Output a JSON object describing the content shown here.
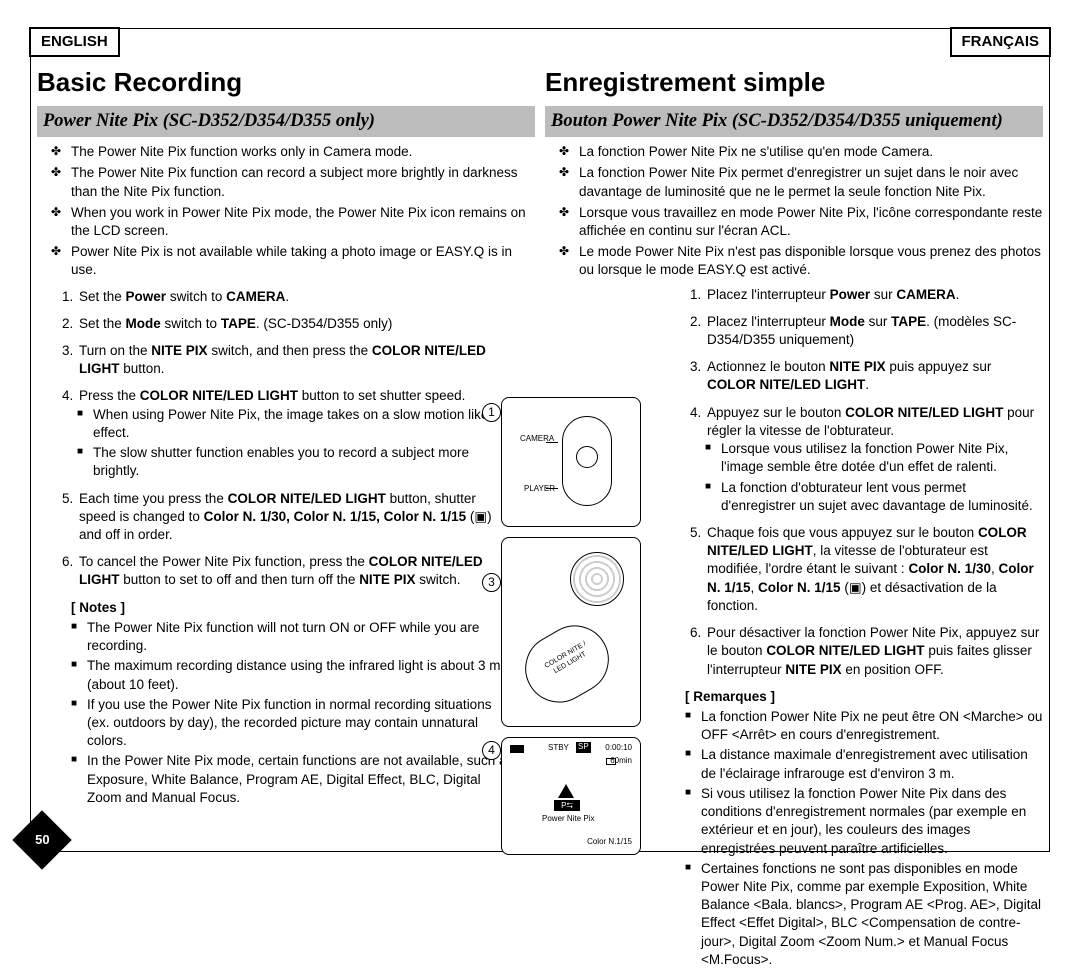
{
  "lang": {
    "en": "ENGLISH",
    "fr": "FRANÇAIS"
  },
  "page_num": "50",
  "en": {
    "title": "Basic Recording",
    "subtitle": "Power Nite Pix (SC-D352/D354/D355 only)",
    "bullets": [
      "The Power Nite Pix function works only in Camera mode.",
      "The Power Nite Pix function can record a subject more brightly in darkness than the Nite Pix function.",
      "When you work in Power Nite Pix mode, the Power Nite Pix icon remains on the LCD screen.",
      "Power Nite Pix is not available while taking a photo image or EASY.Q is in use."
    ],
    "steps": [
      "Set the <b>Power</b> switch to <b>CAMERA</b>.",
      "Set the <b>Mode</b> switch to <b>TAPE</b>. (SC-D354/D355 only)",
      "Turn on the <b>NITE PIX</b> switch, and then press the <b>COLOR NITE/LED LIGHT</b> button.",
      "Press the <b>COLOR NITE/LED LIGHT</b> button to set shutter speed.",
      "Each time you press the <b>COLOR NITE/LED LIGHT</b> button, shutter speed is changed to <b>Color N. 1/30, Color N. 1/15, Color N. 1/15</b> (▣) and off in order.",
      "To cancel the Power Nite Pix function, press the <b>COLOR NITE/LED LIGHT</b> button to set to off and then turn off the <b>NITE PIX</b> switch."
    ],
    "step4_subs": [
      "When using Power Nite Pix, the image takes on a slow motion like effect.",
      "The slow shutter function enables you to record a subject more brightly."
    ],
    "notes_hdr": "[ Notes ]",
    "notes": [
      "The Power Nite Pix function will not turn ON or OFF while you are recording.",
      "The maximum recording distance using the infrared light is about 3 m (about 10 feet).",
      "If you use the Power Nite Pix function in normal recording situations (ex. outdoors by day), the recorded picture may contain unnatural colors.",
      "In the Power Nite Pix mode, certain functions are not available, such as Exposure, White Balance, Program AE, Digital Effect, BLC, Digital Zoom and Manual Focus."
    ]
  },
  "fr": {
    "title": "Enregistrement simple",
    "subtitle": "Bouton Power Nite Pix (SC-D352/D354/D355 uniquement)",
    "bullets": [
      "La fonction Power Nite Pix ne s'utilise qu'en mode Camera.",
      "La fonction Power Nite Pix permet d'enregistrer un sujet dans le noir avec davantage de luminosité que ne le permet la seule fonction Nite Pix.",
      "Lorsque vous travaillez en mode Power Nite Pix, l'icône correspondante reste affichée en continu sur l'écran ACL.",
      "Le mode Power Nite Pix n'est pas disponible lorsque vous prenez des photos ou lorsque le mode EASY.Q est activé."
    ],
    "steps": [
      "Placez l'interrupteur <b>Power</b> sur <b>CAMERA</b>.",
      "Placez l'interrupteur <b>Mode</b> sur <b>TAPE</b>. (modèles SC-D354/D355 uniquement)",
      "Actionnez le bouton <b>NITE PIX</b> puis appuyez sur <b>COLOR NITE/LED LIGHT</b>.",
      "Appuyez sur le bouton <b>COLOR NITE/LED LIGHT</b> pour régler la vitesse de l'obturateur.",
      "Chaque fois que vous appuyez sur le bouton <b>COLOR NITE/LED LIGHT</b>, la vitesse de l'obturateur est modifiée, l'ordre étant le suivant : <b>Color N. 1/30</b>, <b>Color N. 1/15</b>, <b>Color N. 1/15</b> (▣) et désactivation de la fonction.",
      "Pour désactiver la fonction Power Nite Pix, appuyez sur le bouton <b>COLOR NITE/LED LIGHT</b> puis faites glisser l'interrupteur <b>NITE PIX</b> en position OFF."
    ],
    "step4_subs": [
      "Lorsque vous utilisez la fonction Power Nite Pix, l'image semble être dotée d'un effet de ralenti.",
      "La fonction d'obturateur lent vous permet d'enregistrer un sujet avec davantage de luminosité."
    ],
    "notes_hdr": "[ Remarques ]",
    "notes": [
      "La fonction Power Nite Pix ne peut être ON <Marche> ou OFF <Arrêt> en cours d'enregistrement.",
      "La distance maximale d'enregistrement avec utilisation de l'éclairage infrarouge est d'environ 3 m.",
      "Si vous utilisez la fonction Power Nite Pix dans des conditions d'enregistrement normales (par exemple en extérieur et en jour), les couleurs des images enregistrées peuvent paraître artificielles.",
      "Certaines fonctions ne sont pas disponibles en mode Power Nite Pix, comme par exemple Exposition, White Balance <Bala. blancs>, Program AE <Prog. AE>, Digital Effect <Effet Digital>, BLC <Compensation de contre-jour>, Digital Zoom <Zoom Num.> et Manual Focus <M.Focus>."
    ]
  },
  "diagram": {
    "circles": [
      "1",
      "3",
      "4"
    ],
    "lcd": {
      "stby": "STBY",
      "sp": "SP",
      "time": "0:00:10",
      "remain": "60min",
      "mode": "Power Nite Pix",
      "shutter": "Color N.1/15"
    },
    "labels": {
      "camera": "CAMERA",
      "player": "PLAYER",
      "btn": "COLOR NITE /\nLED LIGHT"
    }
  },
  "colors": {
    "subtitle_bg": "#bcbcbc",
    "text": "#000000",
    "page_bg": "#ffffff"
  }
}
